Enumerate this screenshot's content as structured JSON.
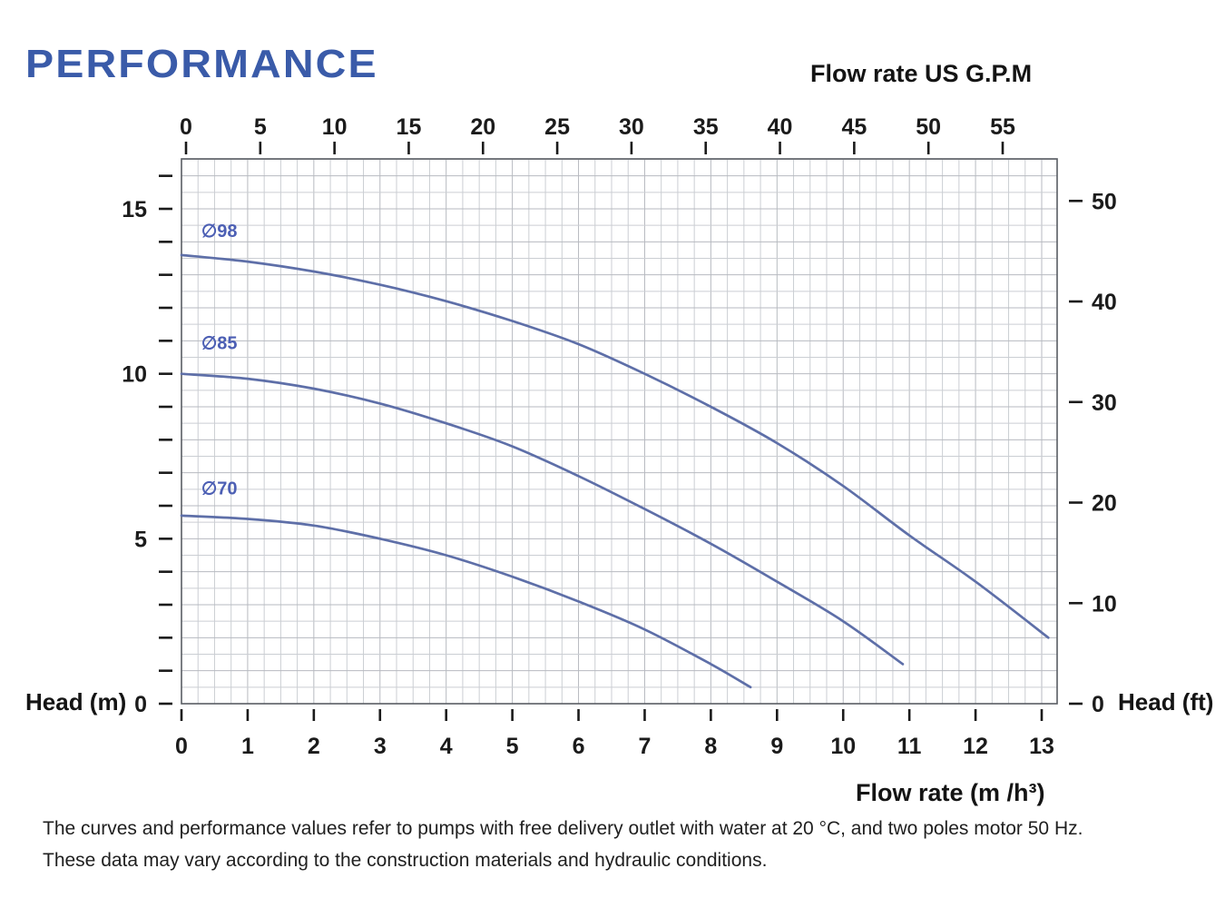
{
  "title": "PERFORMANCE",
  "axes": {
    "top_label": "Flow rate US  G.P.M",
    "bottom_label": "Flow rate  (m /h³)",
    "left_label": "Head (m)",
    "right_label": "Head (ft)"
  },
  "footnote": {
    "line1": "The curves and performance values refer to pumps with free delivery outlet with water at 20 °C, and two poles motor 50 Hz.",
    "line2": "These data may vary according to the construction materials and hydraulic conditions."
  },
  "colors": {
    "title": "#3a5ba9",
    "curve": "#5e6fa8",
    "curve_label": "#4c5fb4",
    "grid_minor": "#cbced3",
    "grid_major": "#b7bac0",
    "border": "#595d63",
    "tick": "#1b1b1b"
  },
  "chart_data": {
    "type": "line",
    "title": "Pump performance curves",
    "x_axis_bottom": {
      "label": "Flow rate (m³/h)",
      "unit": "m³/h",
      "ticks": [
        0,
        1,
        2,
        3,
        4,
        5,
        6,
        7,
        8,
        9,
        10,
        11,
        12,
        13
      ],
      "range": [
        0,
        13.25
      ]
    },
    "x_axis_top": {
      "label": "Flow rate US G.P.M",
      "unit": "US GPM",
      "ticks": [
        0,
        5,
        10,
        15,
        20,
        25,
        30,
        35,
        40,
        45,
        50,
        55
      ],
      "range": [
        0,
        58.5
      ]
    },
    "y_axis_left": {
      "label": "Head (m)",
      "unit": "m",
      "ticks": [
        0,
        5,
        10,
        15
      ],
      "minor_tick_step": 1,
      "range": [
        0,
        16.5
      ]
    },
    "y_axis_right": {
      "label": "Head (ft)",
      "unit": "ft",
      "ticks": [
        0,
        10,
        20,
        30,
        40,
        50
      ],
      "range": [
        0,
        54
      ]
    },
    "grid": true,
    "series": [
      {
        "name": "∅98",
        "label_anchor": [
          0.3,
          14.15
        ],
        "points": [
          [
            0,
            13.6
          ],
          [
            1,
            13.4
          ],
          [
            2,
            13.1
          ],
          [
            3,
            12.7
          ],
          [
            4,
            12.2
          ],
          [
            5,
            11.6
          ],
          [
            6,
            10.9
          ],
          [
            7,
            10.0
          ],
          [
            8,
            9.0
          ],
          [
            9,
            7.9
          ],
          [
            10,
            6.6
          ],
          [
            11,
            5.1
          ],
          [
            12,
            3.7
          ],
          [
            13.1,
            2.0
          ]
        ]
      },
      {
        "name": "∅85",
        "label_anchor": [
          0.3,
          10.75
        ],
        "points": [
          [
            0,
            10.0
          ],
          [
            1,
            9.85
          ],
          [
            2,
            9.55
          ],
          [
            3,
            9.1
          ],
          [
            4,
            8.5
          ],
          [
            5,
            7.8
          ],
          [
            6,
            6.9
          ],
          [
            7,
            5.9
          ],
          [
            8,
            4.85
          ],
          [
            9,
            3.7
          ],
          [
            10,
            2.5
          ],
          [
            10.9,
            1.2
          ]
        ]
      },
      {
        "name": "∅70",
        "label_anchor": [
          0.3,
          6.35
        ],
        "points": [
          [
            0,
            5.7
          ],
          [
            1,
            5.6
          ],
          [
            2,
            5.4
          ],
          [
            3,
            5.0
          ],
          [
            4,
            4.5
          ],
          [
            5,
            3.85
          ],
          [
            6,
            3.1
          ],
          [
            7,
            2.25
          ],
          [
            8,
            1.2
          ],
          [
            8.6,
            0.5
          ]
        ]
      }
    ]
  }
}
